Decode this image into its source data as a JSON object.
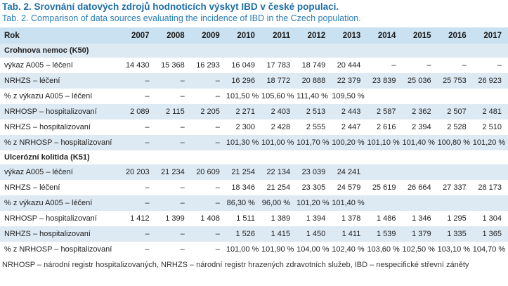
{
  "caption": {
    "cz": "Tab. 2. Srovnání datových zdrojů hodnoticích výskyt IBD v české populaci.",
    "en": "Tab. 2. Comparison of data sources evaluating the incidence of IBD in the Czech population."
  },
  "header": {
    "row_label": "Rok",
    "years": [
      "2007",
      "2008",
      "2009",
      "2010",
      "2011",
      "2012",
      "2013",
      "2014",
      "2015",
      "2016",
      "2017"
    ]
  },
  "sections": [
    {
      "title": "Crohnova nemoc (K50)",
      "rows": [
        {
          "label": "výkaz A005 – léčení",
          "values": [
            "14 430",
            "15 368",
            "16 293",
            "16 049",
            "17 783",
            "18 749",
            "20 444",
            "–",
            "–",
            "–",
            "–"
          ]
        },
        {
          "label": "NRHZS – léčení",
          "values": [
            "–",
            "–",
            "–",
            "16 296",
            "18 772",
            "20 888",
            "22 379",
            "23 839",
            "25 036",
            "25 753",
            "26 923"
          ]
        },
        {
          "label": "% z výkazu A005 – léčení",
          "values": [
            "–",
            "–",
            "–",
            "101,50 %",
            "105,60 %",
            "111,40 %",
            "109,50 %",
            "",
            "",
            "",
            ""
          ]
        },
        {
          "label": "NRHOSP – hospitalizovaní",
          "values": [
            "2 089",
            "2 115",
            "2 205",
            "2 271",
            "2 403",
            "2 513",
            "2 443",
            "2 587",
            "2 362",
            "2 507",
            "2 481"
          ]
        },
        {
          "label": "NRHZS – hospitalizovaní",
          "values": [
            "–",
            "–",
            "–",
            "2 300",
            "2 428",
            "2 555",
            "2 447",
            "2 616",
            "2 394",
            "2 528",
            "2 510"
          ]
        },
        {
          "label": "% z NRHOSP – hospitalizovaní",
          "values": [
            "–",
            "–",
            "–",
            "101,30 %",
            "101,00 %",
            "101,70 %",
            "100,20 %",
            "101,10 %",
            "101,40 %",
            "100,80 %",
            "101,20 %"
          ]
        }
      ]
    },
    {
      "title": "Ulcerózní kolitida (K51)",
      "rows": [
        {
          "label": "výkaz A005 – léčení",
          "values": [
            "20 203",
            "21 234",
            "20 609",
            "21 254",
            "22 134",
            "23 039",
            "24 241",
            "",
            "",
            "",
            ""
          ]
        },
        {
          "label": "NRHZS – léčení",
          "values": [
            "–",
            "–",
            "–",
            "18 346",
            "21 254",
            "23 305",
            "24 579",
            "25 619",
            "26 664",
            "27 337",
            "28 173"
          ]
        },
        {
          "label": "% z výkazu A005 – léčení",
          "values": [
            "–",
            "–",
            "–",
            "86,30 %",
            "96,00 %",
            "101,20 %",
            "101,40 %",
            "",
            "",
            "",
            ""
          ]
        },
        {
          "label": "NRHOSP – hospitalizovaní",
          "values": [
            "1 412",
            "1 399",
            "1 408",
            "1 511",
            "1 389",
            "1 394",
            "1 378",
            "1 486",
            "1 346",
            "1 295",
            "1 304"
          ]
        },
        {
          "label": "NRHZS – hospitalizovaní",
          "values": [
            "–",
            "–",
            "–",
            "1 526",
            "1 415",
            "1 450",
            "1 411",
            "1 539",
            "1 379",
            "1 335",
            "1 365"
          ]
        },
        {
          "label": "% z NRHOSP – hospitalizovaní",
          "values": [
            "–",
            "–",
            "–",
            "101,00 %",
            "101,90 %",
            "104,00 %",
            "102,40 %",
            "103,60 %",
            "102,50 %",
            "103,10 %",
            "104,70 %"
          ]
        }
      ]
    }
  ],
  "footnote": "NRHOSP – národní registr hospitalizovaných, NRHZS – národní registr hrazených zdravotních služeb, IBD – nespecifické střevní záněty",
  "colors": {
    "caption": "#1f6fa6",
    "header_bg": "#c9e1f1",
    "row_shade": "#dde9f3"
  }
}
